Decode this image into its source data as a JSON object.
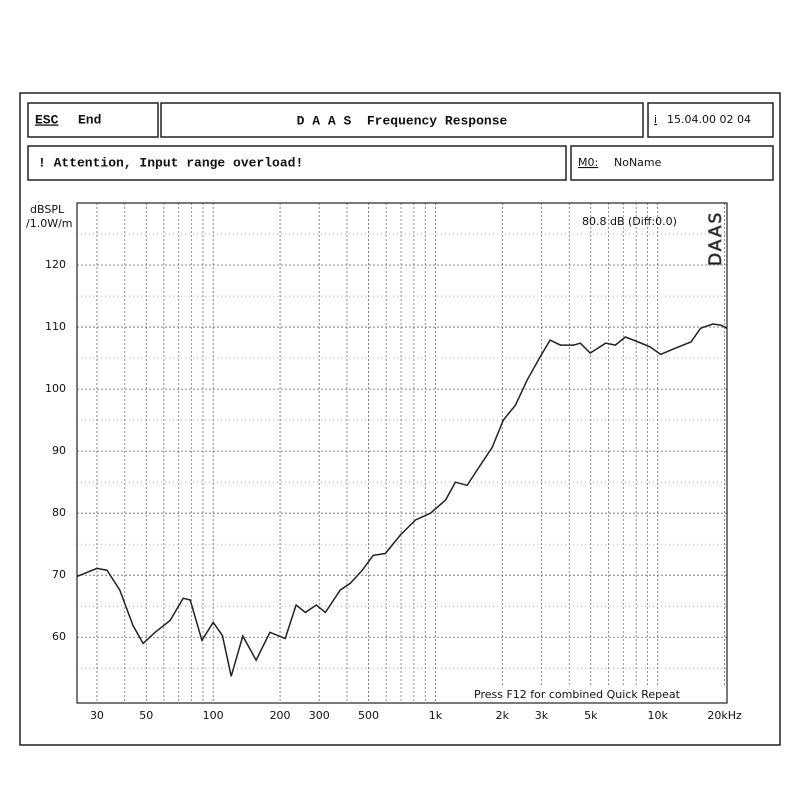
{
  "header": {
    "esc_key": "ESC",
    "esc_label": "End",
    "title": "D A A S  Frequency Response",
    "info_key": "i",
    "datetime": "15.04.00 02 04",
    "warning": "! Attention, Input range overload!",
    "memory_key": "M0:",
    "memory_name": "NoName"
  },
  "chart_data": {
    "type": "line",
    "y_label_unit": "dBSPL",
    "y_label_ref": "/1.0W/m",
    "level_annotation": "80.8 dB (Diff:0.0)",
    "logo": "DAAS",
    "footer_note": "Press F12 for combined Quick Repeat",
    "xscale": "log",
    "grid": true,
    "color": "#222222",
    "xlim": [
      24.4,
      20500
    ],
    "ylim": [
      49.4,
      130
    ],
    "xticks": [
      30,
      50,
      100,
      200,
      300,
      500,
      {
        "value": 1000,
        "label": "1k"
      },
      {
        "value": 2000,
        "label": "2k"
      },
      {
        "value": 3000,
        "label": "3k"
      },
      {
        "value": 5000,
        "label": "5k"
      },
      {
        "value": 10000,
        "label": "10k"
      },
      {
        "value": 20000,
        "label": "20kHz"
      }
    ],
    "xminor": [
      40,
      60,
      70,
      80,
      90,
      400,
      600,
      700,
      800,
      900,
      4000,
      6000,
      7000,
      8000,
      9000
    ],
    "yticks": [
      60,
      70,
      80,
      90,
      100,
      110,
      120
    ],
    "yminor": [
      55,
      65,
      75,
      85,
      95,
      105,
      115,
      125
    ],
    "x": [
      24.4,
      30,
      33.3,
      38,
      43.6,
      48.4,
      54.8,
      64,
      73.3,
      78.8,
      89,
      100,
      110,
      120.5,
      136,
      156,
      180,
      211,
      236,
      260,
      291,
      320,
      373,
      414,
      469,
      525,
      595,
      696,
      813,
      950,
      1110,
      1230,
      1390,
      1590,
      1800,
      2020,
      2290,
      2590,
      2960,
      3280,
      3650,
      4180,
      4490,
      4970,
      5830,
      6450,
      7150,
      8180,
      9250,
      10300,
      12000,
      14100,
      15600,
      17700,
      19300,
      20500
    ],
    "values": [
      69.8,
      71.1,
      70.8,
      67.6,
      61.9,
      59.0,
      60.8,
      62.7,
      66.3,
      66.0,
      59.5,
      62.4,
      60.3,
      53.7,
      60.2,
      56.3,
      60.8,
      59.8,
      65.2,
      64.0,
      65.2,
      64.0,
      67.6,
      68.7,
      70.8,
      73.2,
      73.5,
      76.5,
      78.9,
      80.0,
      82.1,
      85.0,
      84.5,
      87.7,
      90.6,
      95.0,
      97.4,
      101.5,
      105.2,
      107.9,
      107.1,
      107.1,
      107.4,
      105.8,
      107.4,
      107.1,
      108.4,
      107.6,
      106.8,
      105.6,
      106.6,
      107.6,
      109.8,
      110.5,
      110.3,
      109.8
    ]
  }
}
